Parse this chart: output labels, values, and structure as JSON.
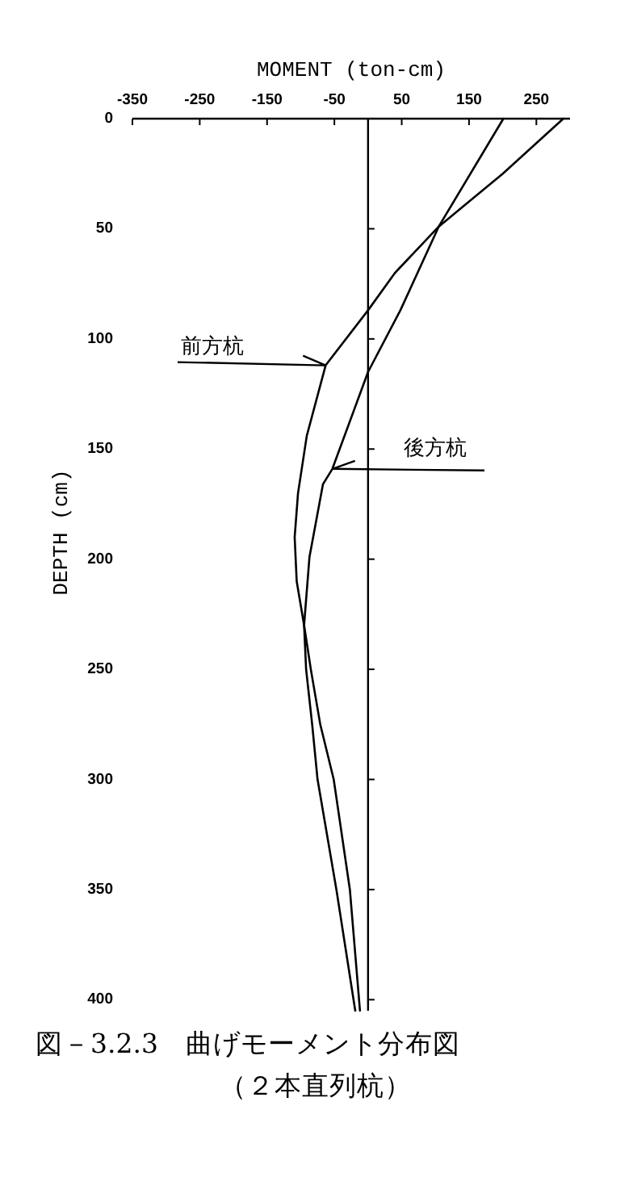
{
  "chart_data": {
    "type": "line",
    "title": "図－3.2.3　曲げモーメント分布図",
    "subtitle": "（２本直列杭）",
    "xlabel": "MOMENT (ton-cm)",
    "ylabel": "DEPTH (cm)",
    "xlim": [
      -350,
      300
    ],
    "xticks": [
      -350,
      -250,
      -150,
      -50,
      50,
      150,
      250
    ],
    "ylim": [
      405,
      0
    ],
    "yticks": [
      0,
      50,
      100,
      150,
      200,
      250,
      300,
      350,
      400
    ],
    "series": [
      {
        "color": "#000000",
        "x": [
          290,
          200,
          105,
          40,
          0,
          -63,
          -91,
          -104,
          -109,
          -106,
          -95,
          -85,
          -71,
          -51,
          -27,
          -12
        ],
        "values": [
          0,
          25,
          49,
          70,
          87,
          112,
          144,
          170,
          190,
          210,
          230,
          250,
          275,
          300,
          350,
          405
        ]
      },
      {
        "color": "#000000",
        "x": [
          201,
          105,
          48,
          0,
          -53,
          -67,
          -87,
          -95,
          -92,
          -83,
          -75,
          -47,
          -19
        ],
        "values": [
          0,
          49,
          87,
          115,
          159,
          166,
          199,
          230,
          250,
          275,
          300,
          350,
          405
        ]
      }
    ],
    "annotations": [
      {
        "text": "前方杭",
        "x": -63,
        "y": 112
      },
      {
        "text": "後方杭",
        "x": -53,
        "y": 159
      }
    ]
  }
}
